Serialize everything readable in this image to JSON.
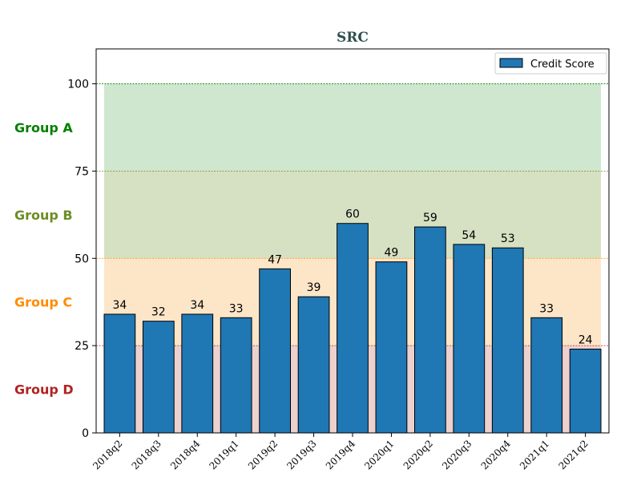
{
  "chart_data": {
    "type": "bar",
    "title": "SRC",
    "categories": [
      "2018q2",
      "2018q3",
      "2018q4",
      "2019q1",
      "2019q2",
      "2019q3",
      "2019q4",
      "2020q1",
      "2020q2",
      "2020q3",
      "2020q4",
      "2021q1",
      "2021q2"
    ],
    "series": [
      {
        "name": "Credit Score",
        "values": [
          34,
          32,
          34,
          33,
          47,
          39,
          60,
          49,
          59,
          54,
          53,
          33,
          24
        ]
      }
    ],
    "ylim": [
      0,
      110
    ],
    "yticks": [
      0,
      25,
      50,
      75,
      100
    ],
    "bands": [
      {
        "label": "Group A",
        "from": 75,
        "to": 100,
        "fill": "#cfe6cf",
        "label_color": "#008000",
        "line_color": "#2e7d32"
      },
      {
        "label": "Group B",
        "from": 50,
        "to": 75,
        "fill": "#d6e0c3",
        "label_color": "#6b8e23",
        "line_color": "#6b8e23"
      },
      {
        "label": "Group C",
        "from": 25,
        "to": 50,
        "fill": "#fde6c8",
        "label_color": "#ff8c00",
        "line_color": "#ff8c00"
      },
      {
        "label": "Group D",
        "from": 0,
        "to": 25,
        "fill": "#ecd1cf",
        "label_color": "#b22222",
        "line_color": "#b22222"
      }
    ],
    "top_line_color": "#008000",
    "bar_color": "#1f77b4",
    "title_color": "#2f4f4f",
    "legend_position": "top-right",
    "grid": false
  }
}
